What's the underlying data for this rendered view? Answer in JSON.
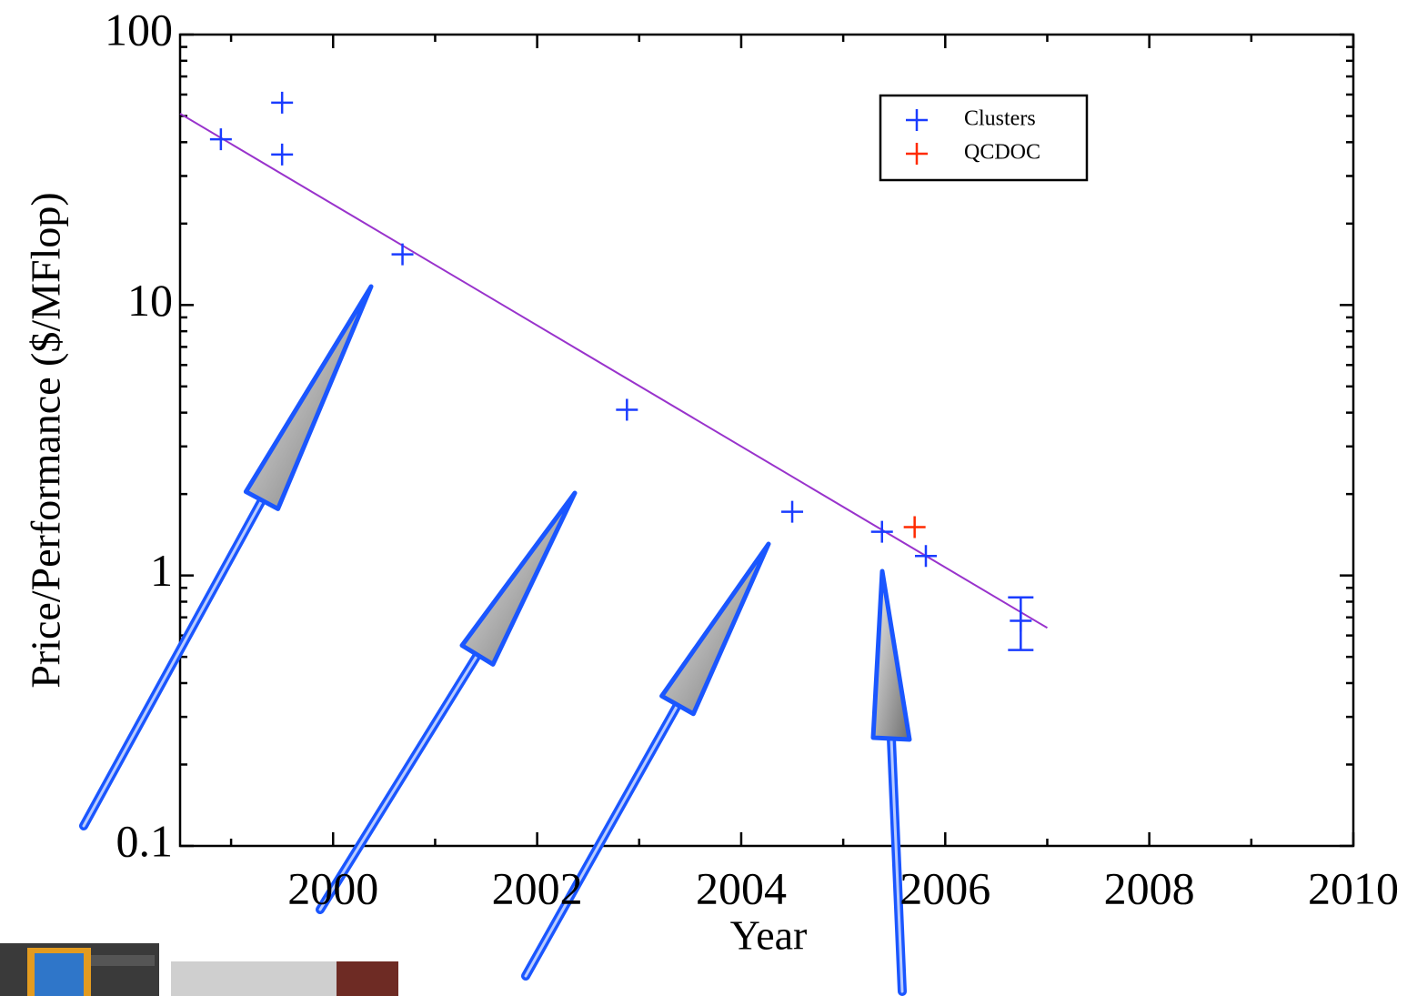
{
  "chart_data": {
    "type": "scatter",
    "xlabel": "Year",
    "ylabel": "Price/Performance ($/MFlop)",
    "log_y": true,
    "xlim": [
      1998.5,
      2010
    ],
    "ylim": [
      0.1,
      100
    ],
    "xticks": [
      2000,
      2002,
      2004,
      2006,
      2008,
      2010
    ],
    "yticks": [
      0.1,
      1,
      10,
      100
    ],
    "xminorticks": [
      1999,
      2001,
      2003,
      2005,
      2007,
      2009
    ],
    "yminorticks": [
      0.2,
      0.3,
      0.4,
      0.5,
      0.6,
      0.7,
      0.8,
      0.9,
      2,
      3,
      4,
      5,
      6,
      7,
      8,
      9,
      20,
      30,
      40,
      50,
      60,
      70,
      80,
      90
    ],
    "legend_position": "upper right",
    "series": [
      {
        "name": "Clusters",
        "color": "#1a3cff",
        "x": [
          1998.9,
          1999.5,
          1999.5,
          2000.68,
          2002.88,
          2004.5,
          2005.38,
          2005.81,
          2006.74
        ],
        "values": [
          41,
          56,
          36,
          15.4,
          4.1,
          1.72,
          1.45,
          1.18,
          0.68
        ],
        "errors": [
          null,
          null,
          null,
          null,
          null,
          null,
          null,
          null,
          0.15
        ]
      },
      {
        "name": "QCDOC",
        "color": "#ff2a00",
        "x": [
          2005.7
        ],
        "values": [
          1.51
        ]
      }
    ],
    "fit_line": {
      "color": "#9933cc",
      "x": [
        1998.5,
        2007.0
      ],
      "values": [
        51,
        0.64
      ]
    }
  }
}
